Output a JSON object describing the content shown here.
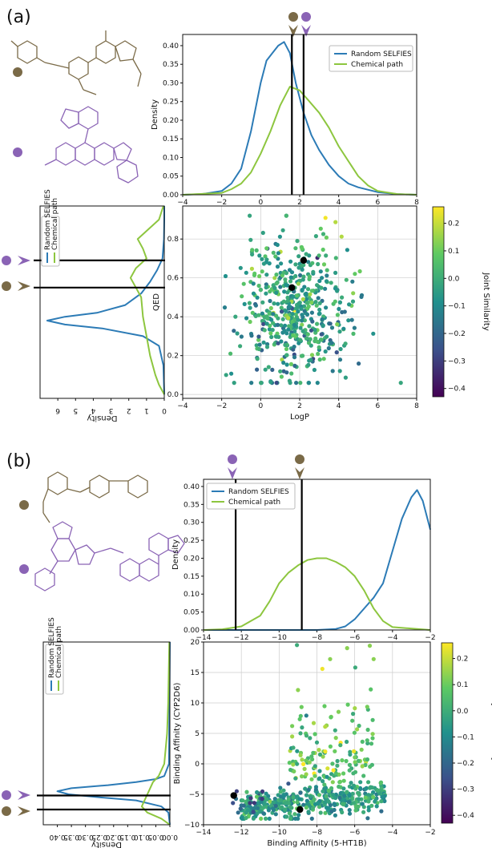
{
  "panels": [
    {
      "label": "(a)",
      "top_density": {
        "xlim": [
          -4,
          8
        ],
        "ylim": [
          0,
          0.43
        ],
        "xticks": [
          -4,
          -2,
          0,
          2,
          4,
          6,
          8
        ],
        "yticks": [
          0.0,
          0.05,
          0.1,
          0.15,
          0.2,
          0.25,
          0.3,
          0.35,
          0.4
        ],
        "ylabel": "Density",
        "vlines": [
          1.6,
          2.2
        ]
      },
      "side_density": {
        "xlim": [
          7,
          0
        ],
        "ylim": [
          -0.02,
          0.97
        ],
        "xticks": [
          6,
          5,
          4,
          3,
          2,
          1,
          0
        ],
        "xlabel": "Density",
        "hlines": [
          0.55,
          0.69
        ]
      },
      "scatter": {
        "xlim": [
          -4,
          8
        ],
        "ylim": [
          -0.02,
          0.97
        ],
        "xticks": [
          -4,
          -2,
          0,
          2,
          4,
          6,
          8
        ],
        "yticks": [
          0.0,
          0.2,
          0.4,
          0.6,
          0.8
        ],
        "xlabel": "LogP",
        "ylabel": "QED",
        "highlight": [
          {
            "x": 1.6,
            "y": 0.55
          },
          {
            "x": 2.2,
            "y": 0.69
          }
        ],
        "cbar": {
          "min": -0.43,
          "max": 0.26,
          "ticks": [
            0.2,
            0.1,
            0.0,
            -0.1,
            -0.2,
            -0.3,
            -0.4
          ],
          "tick_labels": [
            "0.2",
            "0.1",
            "0.0",
            "−0.1",
            "−0.2",
            "−0.3",
            "−0.4"
          ],
          "label": "Joint Similarity"
        }
      },
      "legend": [
        "Random SELFIES",
        "Chemical path"
      ]
    },
    {
      "label": "(b)",
      "top_density": {
        "xlim": [
          -14,
          -2
        ],
        "ylim": [
          0,
          0.42
        ],
        "xticks": [
          -14,
          -12,
          -10,
          -8,
          -6,
          -4,
          -2
        ],
        "yticks": [
          0.0,
          0.05,
          0.1,
          0.15,
          0.2,
          0.25,
          0.3,
          0.35,
          0.4
        ],
        "ylabel": "Density",
        "vlines": [
          -12.3,
          -8.8
        ]
      },
      "side_density": {
        "xlim": [
          0.45,
          0
        ],
        "ylim": [
          -10,
          20
        ],
        "xticks": [
          0.4,
          0.35,
          0.3,
          0.25,
          0.2,
          0.15,
          0.1,
          0.05,
          0.0
        ],
        "xlabel": "Density",
        "hlines": [
          -5.2,
          -7.5
        ]
      },
      "scatter": {
        "xlim": [
          -14,
          -2
        ],
        "ylim": [
          -10,
          20
        ],
        "xticks": [
          -14,
          -12,
          -10,
          -8,
          -6,
          -4,
          -2
        ],
        "yticks": [
          -10,
          -5,
          0,
          5,
          10,
          15,
          20
        ],
        "xlabel": "Binding Affinity (5-HT1B)",
        "ylabel": "Binding Affinity (CYP2D6)",
        "highlight": [
          {
            "x": -12.4,
            "y": -5.2
          },
          {
            "x": -8.9,
            "y": -7.5
          }
        ],
        "cbar": {
          "min": -0.43,
          "max": 0.26,
          "ticks": [
            0.2,
            0.1,
            0.0,
            -0.1,
            -0.2,
            -0.3,
            -0.4
          ],
          "tick_labels": [
            "0.2",
            "0.1",
            "0.0",
            "−0.1",
            "−0.2",
            "−0.3",
            "−0.4"
          ],
          "label": "Joint Similarity"
        }
      },
      "legend": [
        "Random SELFIES",
        "Chemical path"
      ]
    }
  ],
  "chart_data": [
    {
      "type": "line",
      "panel": "(a) top",
      "xlabel": "",
      "ylabel": "Density",
      "xlim": [
        -4,
        8
      ],
      "ylim": [
        0,
        0.43
      ],
      "series": [
        {
          "name": "Random SELFIES",
          "x": [
            -4,
            -3,
            -2,
            -1.5,
            -1,
            -0.5,
            0,
            0.3,
            0.6,
            0.9,
            1.2,
            1.5,
            1.8,
            2.2,
            2.6,
            3.0,
            3.5,
            4.0,
            4.5,
            5,
            6,
            7,
            8
          ],
          "y": [
            0.0,
            0.002,
            0.01,
            0.03,
            0.07,
            0.17,
            0.3,
            0.36,
            0.38,
            0.4,
            0.41,
            0.38,
            0.3,
            0.22,
            0.16,
            0.12,
            0.08,
            0.05,
            0.03,
            0.02,
            0.007,
            0.002,
            0.0
          ]
        },
        {
          "name": "Chemical path",
          "x": [
            -4,
            -2,
            -1.5,
            -1,
            -0.5,
            0,
            0.5,
            1.0,
            1.5,
            2.0,
            2.5,
            3.0,
            3.5,
            4.0,
            4.5,
            5.0,
            5.5,
            6.0,
            7,
            8
          ],
          "y": [
            0.0,
            0.005,
            0.015,
            0.03,
            0.06,
            0.11,
            0.17,
            0.24,
            0.29,
            0.28,
            0.25,
            0.22,
            0.18,
            0.13,
            0.09,
            0.05,
            0.025,
            0.01,
            0.002,
            0.0
          ]
        }
      ],
      "vlines": [
        1.6,
        2.2
      ]
    },
    {
      "type": "line",
      "panel": "(a) left",
      "xlabel": "Density",
      "ylabel": "",
      "xlim": [
        7,
        0
      ],
      "ylim": [
        -0.02,
        0.97
      ],
      "series": [
        {
          "name": "Random SELFIES",
          "y": [
            0.0,
            0.15,
            0.25,
            0.3,
            0.34,
            0.36,
            0.38,
            0.4,
            0.42,
            0.46,
            0.52,
            0.58,
            0.64,
            0.7,
            0.8,
            0.9,
            0.97
          ],
          "x": [
            0.0,
            0.05,
            0.3,
            1.2,
            3.5,
            5.6,
            6.6,
            5.6,
            3.8,
            2.2,
            1.3,
            0.8,
            0.4,
            0.1,
            0.02,
            0.0,
            0.0
          ]
        },
        {
          "name": "Chemical path",
          "y": [
            0.0,
            0.05,
            0.1,
            0.2,
            0.3,
            0.4,
            0.5,
            0.55,
            0.6,
            0.65,
            0.7,
            0.75,
            0.8,
            0.85,
            0.9,
            0.97
          ],
          "x": [
            0.0,
            0.3,
            0.5,
            0.8,
            1.0,
            1.2,
            1.3,
            1.6,
            1.9,
            1.6,
            1.0,
            1.2,
            1.5,
            0.9,
            0.3,
            0.05
          ]
        }
      ],
      "hlines": [
        0.55,
        0.69
      ]
    },
    {
      "type": "scatter",
      "panel": "(a) main",
      "xlabel": "LogP",
      "ylabel": "QED",
      "xlim": [
        -4,
        8
      ],
      "ylim": [
        -0.02,
        0.97
      ],
      "note": "~500 points, colored by Joint Similarity (viridis, -0.43 to 0.26); values approximated",
      "highlight": [
        {
          "x": 1.6,
          "y": 0.55
        },
        {
          "x": 2.2,
          "y": 0.69
        }
      ]
    },
    {
      "type": "line",
      "panel": "(b) top",
      "xlabel": "",
      "ylabel": "Density",
      "xlim": [
        -14,
        -2
      ],
      "ylim": [
        0,
        0.42
      ],
      "series": [
        {
          "name": "Random SELFIES",
          "x": [
            -14,
            -8,
            -7,
            -6.5,
            -6,
            -5.5,
            -5,
            -4.5,
            -4,
            -3.5,
            -3,
            -2.7,
            -2.4,
            -2
          ],
          "y": [
            0,
            0,
            0.003,
            0.01,
            0.03,
            0.06,
            0.09,
            0.13,
            0.22,
            0.31,
            0.37,
            0.39,
            0.36,
            0.28
          ]
        },
        {
          "name": "Chemical path",
          "x": [
            -14,
            -13,
            -12,
            -11,
            -10.5,
            -10,
            -9.5,
            -9,
            -8.5,
            -8,
            -7.5,
            -7,
            -6.5,
            -6,
            -5.5,
            -5,
            -4.5,
            -4,
            -2
          ],
          "y": [
            0.0,
            0.002,
            0.01,
            0.04,
            0.08,
            0.13,
            0.16,
            0.18,
            0.195,
            0.2,
            0.2,
            0.19,
            0.175,
            0.15,
            0.11,
            0.06,
            0.025,
            0.008,
            0.0
          ]
        }
      ],
      "vlines": [
        -12.3,
        -8.8
      ]
    },
    {
      "type": "line",
      "panel": "(b) left",
      "xlabel": "Density",
      "ylabel": "",
      "xlim": [
        0.45,
        0
      ],
      "ylim": [
        -10,
        20
      ],
      "series": [
        {
          "name": "Random SELFIES",
          "y": [
            -10,
            -8,
            -7,
            -6,
            -5.5,
            -5,
            -4.5,
            -4,
            -3.5,
            -3,
            -2.5,
            -2,
            0,
            20
          ],
          "x": [
            0,
            0.005,
            0.03,
            0.12,
            0.25,
            0.36,
            0.4,
            0.35,
            0.22,
            0.12,
            0.05,
            0.02,
            0.003,
            0
          ]
        },
        {
          "name": "Chemical path",
          "y": [
            -10,
            -9,
            -8,
            -7,
            -6,
            -5,
            -4,
            -3,
            -2,
            0,
            5,
            10,
            15,
            20
          ],
          "x": [
            0.0,
            0.03,
            0.08,
            0.1,
            0.09,
            0.08,
            0.07,
            0.06,
            0.04,
            0.02,
            0.01,
            0.006,
            0.004,
            0.002
          ]
        }
      ],
      "hlines": [
        -5.2,
        -7.5
      ]
    },
    {
      "type": "scatter",
      "panel": "(b) main",
      "xlabel": "Binding Affinity (5-HT1B)",
      "ylabel": "Binding Affinity (CYP2D6)",
      "xlim": [
        -14,
        -2
      ],
      "ylim": [
        -10,
        20
      ],
      "note": "~400 points, colored by Joint Similarity (viridis, -0.43 to 0.26); values approximated",
      "highlight": [
        {
          "x": -12.4,
          "y": -5.2
        },
        {
          "x": -8.9,
          "y": -7.5
        }
      ]
    }
  ]
}
